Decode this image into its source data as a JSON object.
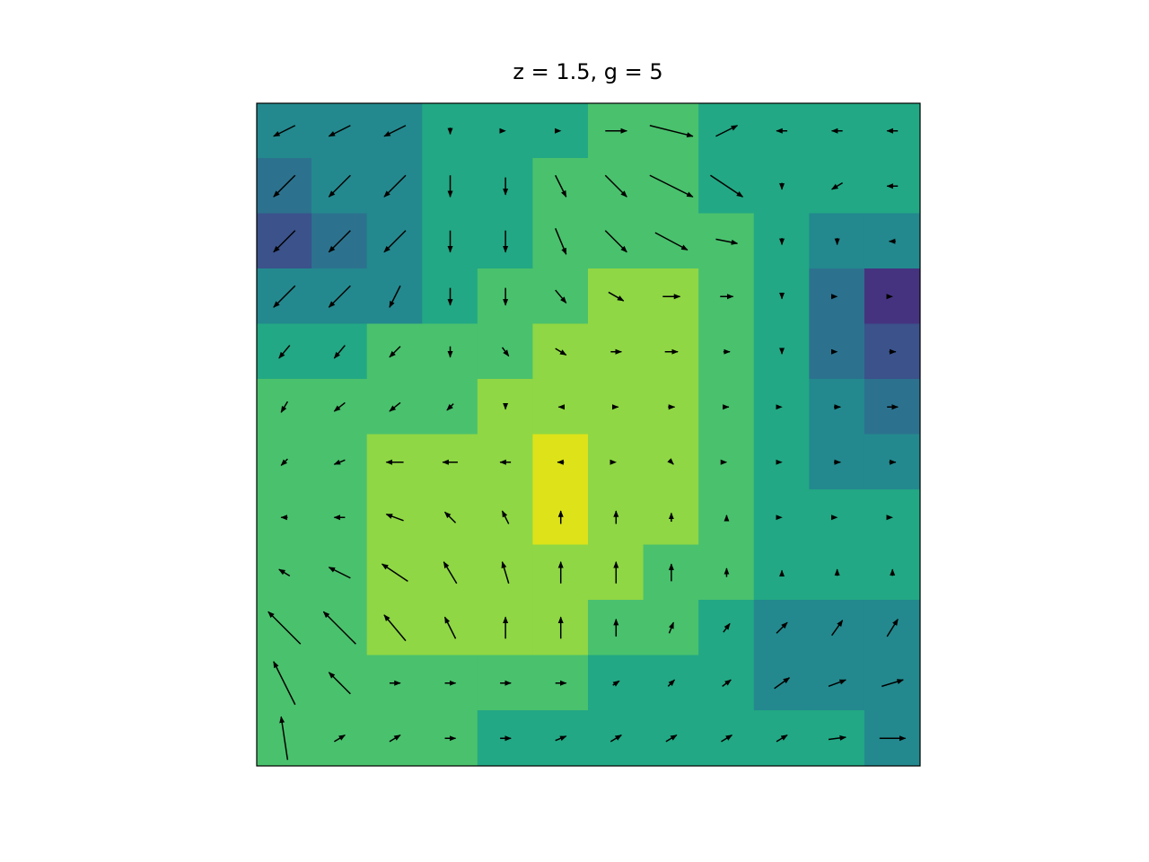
{
  "chart_data": {
    "type": "contour-quiver",
    "title": "z = 1.5, g = 5",
    "levels": [
      0,
      1,
      2,
      3,
      4,
      5,
      6,
      7,
      8,
      9
    ],
    "colors": [
      "#440154",
      "#46337f",
      "#3b528b",
      "#2c728e",
      "#23898e",
      "#22a884",
      "#4ac16d",
      "#8fd744",
      "#dde318"
    ],
    "arrow_color": "#000000",
    "z": [
      [
        4,
        4,
        4,
        5,
        5,
        5,
        6,
        6,
        5,
        5,
        5,
        5
      ],
      [
        3,
        4,
        4,
        5,
        5,
        6,
        6,
        6,
        5,
        5,
        5,
        5
      ],
      [
        2,
        3,
        4,
        5,
        5,
        6,
        6,
        6,
        6,
        5,
        4,
        4
      ],
      [
        4,
        4,
        4,
        5,
        6,
        6,
        7,
        7,
        6,
        5,
        3,
        1
      ],
      [
        5,
        5,
        6,
        6,
        6,
        7,
        7,
        7,
        6,
        5,
        3,
        2
      ],
      [
        6,
        6,
        6,
        6,
        7,
        7,
        7,
        7,
        6,
        5,
        4,
        3
      ],
      [
        6,
        6,
        7,
        7,
        7,
        8,
        7,
        7,
        6,
        5,
        4,
        4
      ],
      [
        6,
        6,
        7,
        7,
        7,
        8,
        7,
        7,
        6,
        5,
        5,
        5
      ],
      [
        6,
        6,
        7,
        7,
        7,
        7,
        7,
        6,
        6,
        5,
        5,
        5
      ],
      [
        6,
        6,
        7,
        7,
        7,
        7,
        6,
        6,
        5,
        4,
        4,
        4
      ],
      [
        6,
        6,
        6,
        6,
        6,
        6,
        5,
        5,
        5,
        4,
        4,
        4
      ],
      [
        6,
        6,
        6,
        6,
        5,
        5,
        5,
        5,
        5,
        5,
        5,
        4
      ]
    ],
    "u": [
      [
        -1,
        -1,
        -1,
        0,
        0,
        0,
        1,
        2,
        1,
        -0.5,
        -0.5,
        -0.5
      ],
      [
        -1,
        -1,
        -1,
        0,
        0,
        0.5,
        1,
        2,
        1.5,
        0,
        -0.5,
        -0.5
      ],
      [
        -1,
        -1,
        -1,
        0,
        0,
        0.5,
        1,
        1.5,
        1,
        0,
        0,
        -0.3
      ],
      [
        -1,
        -1,
        -0.5,
        0,
        0,
        0.5,
        0.7,
        0.8,
        0.6,
        0,
        0,
        0
      ],
      [
        -0.5,
        -0.5,
        -0.5,
        0,
        0.3,
        0.5,
        0.5,
        0.6,
        0.3,
        0,
        0,
        0.3
      ],
      [
        -0.3,
        -0.5,
        -0.5,
        -0.3,
        0,
        -0.2,
        0.2,
        0.3,
        0.2,
        0,
        0.3,
        0.5
      ],
      [
        -0.3,
        -0.5,
        -0.8,
        -0.7,
        -0.5,
        -0.3,
        0,
        0.2,
        0,
        0,
        0.3,
        0.3
      ],
      [
        -0.3,
        -0.5,
        -0.8,
        -0.5,
        -0.3,
        0,
        0,
        0,
        0,
        0,
        0,
        0
      ],
      [
        -0.5,
        -1,
        -1.2,
        -0.6,
        -0.3,
        0,
        0,
        0,
        0,
        0,
        0,
        0
      ],
      [
        -1.5,
        -1.5,
        -1,
        -0.5,
        0,
        0,
        0,
        0.2,
        0.3,
        0.5,
        0.5,
        0.5
      ],
      [
        -1,
        -1,
        0.5,
        0.5,
        0.5,
        0.5,
        0.3,
        0.3,
        0.4,
        0.7,
        0.8,
        1
      ],
      [
        -0.3,
        0.5,
        0.5,
        0.5,
        0.5,
        0.5,
        0.5,
        0.5,
        0.5,
        0.5,
        0.8,
        1.2
      ]
    ],
    "v": [
      [
        -0.5,
        -0.5,
        -0.5,
        -0.3,
        0,
        0,
        0,
        -0.5,
        0.5,
        0,
        0,
        0
      ],
      [
        -1,
        -1,
        -1,
        -1,
        -0.8,
        -1,
        -1,
        -1,
        -1,
        -0.3,
        -0.3,
        0
      ],
      [
        -1,
        -1,
        -1,
        -1,
        -1,
        -1.2,
        -1,
        -0.8,
        -0.2,
        -0.3,
        -0.3,
        0
      ],
      [
        -1,
        -1,
        -1,
        -0.8,
        -0.8,
        -0.6,
        -0.4,
        0,
        0,
        -0.2,
        0,
        0
      ],
      [
        -0.6,
        -0.6,
        -0.5,
        -0.5,
        -0.4,
        -0.3,
        0,
        0,
        0,
        -0.2,
        0,
        0
      ],
      [
        -0.5,
        -0.4,
        -0.4,
        -0.3,
        -0.2,
        0,
        0,
        0,
        0,
        0,
        0,
        0
      ],
      [
        -0.3,
        -0.2,
        0,
        0,
        0,
        0,
        0,
        -0.2,
        0,
        0,
        0,
        0
      ],
      [
        0,
        0,
        0.3,
        0.5,
        0.6,
        0.6,
        0.6,
        0.4,
        0.2,
        0,
        0,
        0
      ],
      [
        0.3,
        0.5,
        0.8,
        1,
        1,
        1,
        1,
        0.8,
        0.4,
        0.2,
        0.3,
        0.3
      ],
      [
        1.5,
        1.5,
        1.2,
        1,
        1,
        1,
        0.8,
        0.5,
        0.4,
        0.5,
        0.7,
        0.8
      ],
      [
        2,
        1,
        0,
        0,
        0,
        0,
        0.2,
        0.3,
        0.3,
        0.5,
        0.3,
        0.3
      ],
      [
        2,
        0.3,
        0.3,
        0,
        0,
        0.2,
        0.3,
        0.3,
        0.3,
        0.3,
        0.1,
        0
      ]
    ]
  }
}
